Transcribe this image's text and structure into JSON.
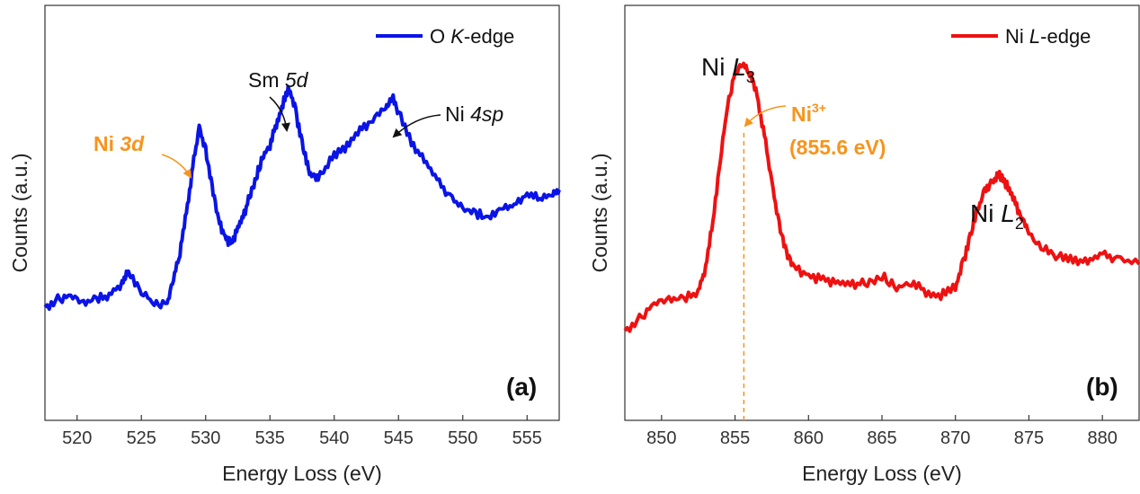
{
  "colors": {
    "blue": "#0A14E6",
    "red": "#EE1111",
    "orange": "#F7941D",
    "axis": "#333333"
  },
  "chart_data": [
    {
      "type": "line",
      "panel_label": "(a)",
      "xlabel": "Energy Loss (eV)",
      "ylabel": "Counts (a.u.)",
      "xlim": [
        517.5,
        557.5
      ],
      "ylim": [
        0,
        1
      ],
      "x_ticks": [
        520,
        525,
        530,
        535,
        540,
        545,
        550,
        555
      ],
      "x_tick_labels": [
        "520",
        "525",
        "530",
        "535",
        "540",
        "545",
        "550",
        "555"
      ],
      "y_ticks": "none",
      "legend": {
        "position": "top-right",
        "entries": [
          "O K-edge"
        ]
      },
      "series": [
        {
          "name": "O K-edge",
          "color": "#0A14E6",
          "x": [
            517.5,
            518.5,
            519.5,
            520.5,
            521.5,
            522.5,
            523.5,
            524.0,
            525.0,
            526.0,
            527.0,
            527.5,
            528.0,
            528.5,
            529.0,
            529.5,
            530.0,
            530.5,
            531.0,
            531.5,
            532.0,
            532.5,
            533.0,
            533.5,
            534.0,
            534.5,
            535.0,
            535.5,
            536.0,
            536.5,
            537.0,
            537.5,
            538.0,
            538.5,
            539.0,
            540.0,
            541.0,
            542.0,
            543.0,
            544.0,
            544.5,
            545.0,
            546.0,
            547.0,
            548.0,
            549.0,
            550.0,
            551.0,
            552.0,
            553.0,
            554.0,
            555.0,
            556.0,
            557.0,
            557.5
          ],
          "y": [
            0.26,
            0.28,
            0.29,
            0.27,
            0.28,
            0.29,
            0.32,
            0.35,
            0.3,
            0.27,
            0.27,
            0.33,
            0.4,
            0.5,
            0.62,
            0.72,
            0.66,
            0.57,
            0.48,
            0.44,
            0.42,
            0.46,
            0.5,
            0.55,
            0.6,
            0.65,
            0.67,
            0.73,
            0.78,
            0.82,
            0.76,
            0.68,
            0.61,
            0.59,
            0.6,
            0.65,
            0.67,
            0.71,
            0.74,
            0.77,
            0.8,
            0.76,
            0.68,
            0.64,
            0.59,
            0.54,
            0.51,
            0.5,
            0.49,
            0.51,
            0.52,
            0.55,
            0.54,
            0.55,
            0.56
          ]
        }
      ],
      "annotations": [
        {
          "text_main": "Ni ",
          "text_ital": "3d",
          "color": "#F7941D",
          "points_to_x": 529.0
        },
        {
          "text_main": "Sm ",
          "text_ital": "5d",
          "color": "#111111",
          "points_to_x": 536.5
        },
        {
          "text_main": "Ni ",
          "text_ital": "4sp",
          "color": "#111111",
          "points_to_x": 544.0
        }
      ]
    },
    {
      "type": "line",
      "panel_label": "(b)",
      "xlabel": "Energy Loss (eV)",
      "ylabel": "Counts (a.u.)",
      "xlim": [
        847.5,
        882.5
      ],
      "ylim": [
        0,
        1
      ],
      "x_ticks": [
        850,
        855,
        860,
        865,
        870,
        875,
        880
      ],
      "x_tick_labels": [
        "850",
        "855",
        "860",
        "865",
        "870",
        "875",
        "880"
      ],
      "y_ticks": "none",
      "legend": {
        "position": "top-right",
        "entries": [
          "Ni L-edge"
        ]
      },
      "series": [
        {
          "name": "Ni L-edge",
          "color": "#EE1111",
          "x": [
            847.5,
            848.5,
            849.5,
            850.5,
            851.5,
            852.5,
            853.0,
            853.5,
            854.0,
            854.5,
            855.0,
            855.5,
            856.0,
            856.5,
            857.0,
            857.5,
            858.0,
            858.5,
            859.0,
            860.0,
            861.0,
            862.0,
            863.0,
            864.0,
            865.0,
            866.0,
            867.0,
            868.0,
            869.0,
            870.0,
            870.5,
            871.0,
            871.5,
            872.0,
            872.5,
            873.0,
            873.5,
            874.0,
            874.5,
            875.0,
            876.0,
            877.0,
            878.0,
            879.0,
            880.0,
            881.0,
            882.5
          ],
          "y": [
            0.2,
            0.23,
            0.27,
            0.28,
            0.28,
            0.3,
            0.36,
            0.48,
            0.64,
            0.78,
            0.86,
            0.88,
            0.86,
            0.8,
            0.7,
            0.58,
            0.47,
            0.4,
            0.36,
            0.34,
            0.33,
            0.32,
            0.32,
            0.32,
            0.34,
            0.31,
            0.32,
            0.3,
            0.29,
            0.31,
            0.37,
            0.44,
            0.51,
            0.56,
            0.58,
            0.6,
            0.57,
            0.53,
            0.49,
            0.45,
            0.41,
            0.39,
            0.38,
            0.38,
            0.4,
            0.38,
            0.37
          ]
        }
      ],
      "annotations": [
        {
          "text_main": "Ni ",
          "text_ital": "L",
          "sub": "3",
          "points_to_x": 855.5
        },
        {
          "text_main": "Ni",
          "sup": "3+",
          "line2": "(855.6 eV)",
          "color": "#F7941D",
          "points_to_x": 855.6
        },
        {
          "text_main": "Ni ",
          "text_ital": "L",
          "sub": "2",
          "points_to_x": 873.0
        }
      ]
    }
  ]
}
